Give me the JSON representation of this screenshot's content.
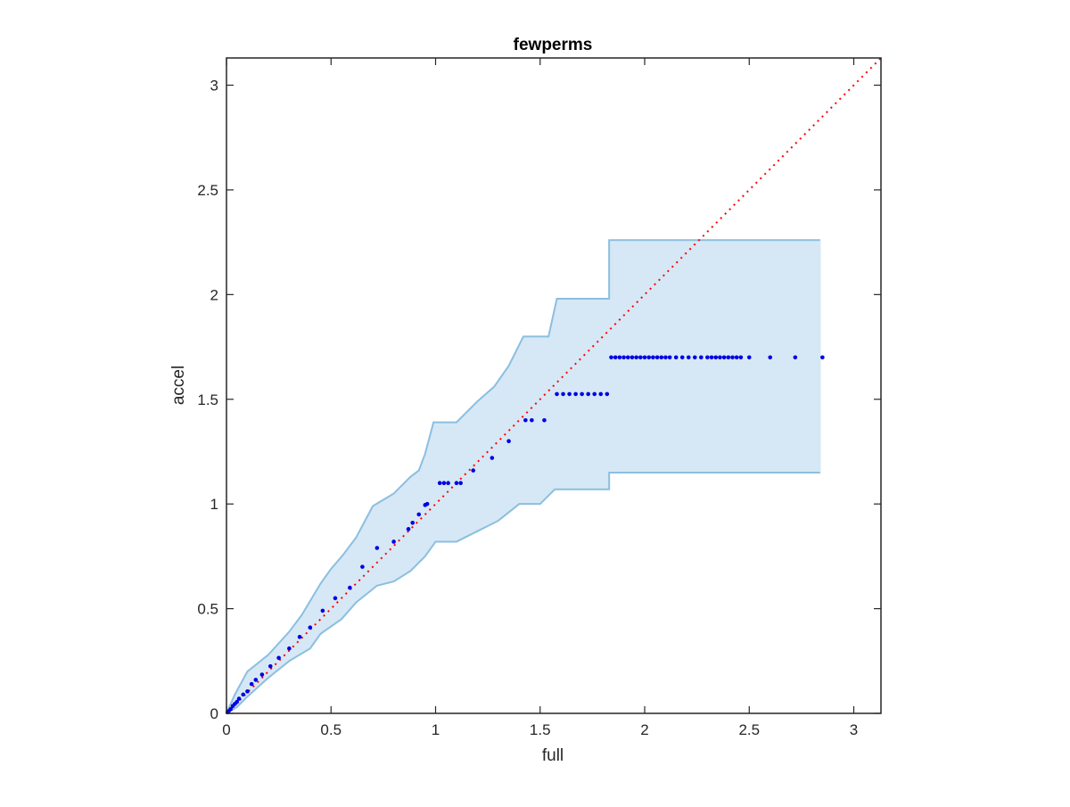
{
  "chart_data": {
    "type": "scatter",
    "title": "fewperms",
    "xlabel": "full",
    "ylabel": "accel",
    "xlim": [
      0,
      3.13
    ],
    "ylim": [
      0,
      3.13
    ],
    "grid": false,
    "xticks": [
      0,
      0.5,
      1,
      1.5,
      2,
      2.5,
      3
    ],
    "yticks": [
      0,
      0.5,
      1,
      1.5,
      2,
      2.5,
      3
    ],
    "xtick_labels": [
      "0",
      "0.5",
      "1",
      "1.5",
      "2",
      "2.5",
      "3"
    ],
    "ytick_labels": [
      "0",
      "0.5",
      "1",
      "1.5",
      "2",
      "2.5",
      "3"
    ],
    "colors": {
      "points": "#0000e6",
      "band_fill": "#d6e8f5",
      "band_edge": "#8bbfe0",
      "identity_line": "#ff0000",
      "axes": "#262626"
    },
    "identity_line": {
      "style": "dotted",
      "from": [
        0,
        0
      ],
      "to": [
        3.13,
        3.13
      ]
    },
    "band": {
      "upper": [
        [
          0,
          0
        ],
        [
          0.04,
          0.09
        ],
        [
          0.1,
          0.2
        ],
        [
          0.2,
          0.28
        ],
        [
          0.3,
          0.39
        ],
        [
          0.36,
          0.47
        ],
        [
          0.45,
          0.62
        ],
        [
          0.5,
          0.69
        ],
        [
          0.56,
          0.76
        ],
        [
          0.62,
          0.84
        ],
        [
          0.7,
          0.99
        ],
        [
          0.75,
          1.02
        ],
        [
          0.8,
          1.05
        ],
        [
          0.88,
          1.13
        ],
        [
          0.92,
          1.16
        ],
        [
          0.95,
          1.24
        ],
        [
          0.99,
          1.39
        ],
        [
          1.1,
          1.39
        ],
        [
          1.2,
          1.49
        ],
        [
          1.28,
          1.56
        ],
        [
          1.35,
          1.66
        ],
        [
          1.42,
          1.8
        ],
        [
          1.54,
          1.8
        ],
        [
          1.58,
          1.98
        ],
        [
          1.83,
          1.98
        ],
        [
          1.83,
          2.26
        ],
        [
          2.84,
          2.26
        ]
      ],
      "lower": [
        [
          0,
          0
        ],
        [
          0.05,
          0.03
        ],
        [
          0.1,
          0.08
        ],
        [
          0.2,
          0.17
        ],
        [
          0.3,
          0.25
        ],
        [
          0.4,
          0.31
        ],
        [
          0.45,
          0.38
        ],
        [
          0.55,
          0.45
        ],
        [
          0.62,
          0.53
        ],
        [
          0.72,
          0.61
        ],
        [
          0.8,
          0.63
        ],
        [
          0.88,
          0.68
        ],
        [
          0.95,
          0.75
        ],
        [
          1.0,
          0.82
        ],
        [
          1.1,
          0.82
        ],
        [
          1.2,
          0.87
        ],
        [
          1.3,
          0.92
        ],
        [
          1.4,
          1.0
        ],
        [
          1.5,
          1.0
        ],
        [
          1.57,
          1.07
        ],
        [
          1.83,
          1.07
        ],
        [
          1.83,
          1.15
        ],
        [
          2.84,
          1.15
        ]
      ]
    },
    "points": [
      [
        0.005,
        0.005
      ],
      [
        0.01,
        0.01
      ],
      [
        0.02,
        0.02
      ],
      [
        0.03,
        0.035
      ],
      [
        0.04,
        0.045
      ],
      [
        0.05,
        0.055
      ],
      [
        0.06,
        0.07
      ],
      [
        0.08,
        0.09
      ],
      [
        0.1,
        0.105
      ],
      [
        0.12,
        0.14
      ],
      [
        0.14,
        0.16
      ],
      [
        0.17,
        0.185
      ],
      [
        0.21,
        0.225
      ],
      [
        0.25,
        0.265
      ],
      [
        0.3,
        0.31
      ],
      [
        0.35,
        0.365
      ],
      [
        0.4,
        0.41
      ],
      [
        0.46,
        0.49
      ],
      [
        0.52,
        0.55
      ],
      [
        0.59,
        0.6
      ],
      [
        0.65,
        0.7
      ],
      [
        0.72,
        0.79
      ],
      [
        0.8,
        0.82
      ],
      [
        0.87,
        0.88
      ],
      [
        0.89,
        0.91
      ],
      [
        0.92,
        0.95
      ],
      [
        0.95,
        0.995
      ],
      [
        0.96,
        1.0
      ],
      [
        1.02,
        1.1
      ],
      [
        1.04,
        1.1
      ],
      [
        1.06,
        1.1
      ],
      [
        1.1,
        1.1
      ],
      [
        1.12,
        1.1
      ],
      [
        1.18,
        1.16
      ],
      [
        1.27,
        1.22
      ],
      [
        1.35,
        1.3
      ],
      [
        1.43,
        1.4
      ],
      [
        1.46,
        1.4
      ],
      [
        1.52,
        1.4
      ],
      [
        1.58,
        1.525
      ],
      [
        1.61,
        1.525
      ],
      [
        1.64,
        1.525
      ],
      [
        1.67,
        1.525
      ],
      [
        1.7,
        1.525
      ],
      [
        1.73,
        1.525
      ],
      [
        1.76,
        1.525
      ],
      [
        1.79,
        1.525
      ],
      [
        1.82,
        1.525
      ],
      [
        1.84,
        1.7
      ],
      [
        1.86,
        1.7
      ],
      [
        1.88,
        1.7
      ],
      [
        1.9,
        1.7
      ],
      [
        1.92,
        1.7
      ],
      [
        1.94,
        1.7
      ],
      [
        1.96,
        1.7
      ],
      [
        1.98,
        1.7
      ],
      [
        2.0,
        1.7
      ],
      [
        2.02,
        1.7
      ],
      [
        2.04,
        1.7
      ],
      [
        2.06,
        1.7
      ],
      [
        2.08,
        1.7
      ],
      [
        2.1,
        1.7
      ],
      [
        2.12,
        1.7
      ],
      [
        2.15,
        1.7
      ],
      [
        2.18,
        1.7
      ],
      [
        2.21,
        1.7
      ],
      [
        2.24,
        1.7
      ],
      [
        2.27,
        1.7
      ],
      [
        2.3,
        1.7
      ],
      [
        2.32,
        1.7
      ],
      [
        2.34,
        1.7
      ],
      [
        2.36,
        1.7
      ],
      [
        2.38,
        1.7
      ],
      [
        2.4,
        1.7
      ],
      [
        2.42,
        1.7
      ],
      [
        2.44,
        1.7
      ],
      [
        2.46,
        1.7
      ],
      [
        2.5,
        1.7
      ],
      [
        2.6,
        1.7
      ],
      [
        2.72,
        1.7
      ],
      [
        2.85,
        1.7
      ]
    ]
  }
}
